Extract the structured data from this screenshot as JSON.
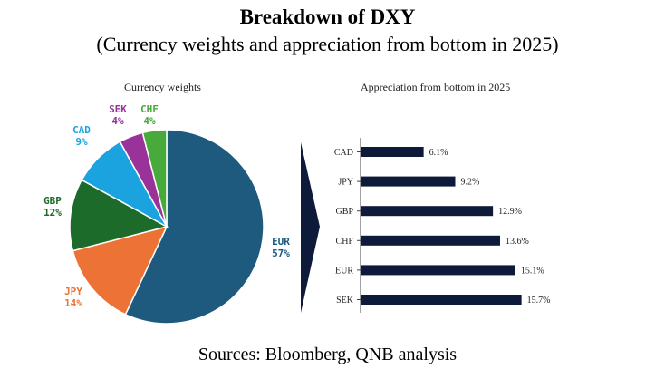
{
  "title": "Breakdown of DXY",
  "subtitle": "(Currency weights and appreciation from bottom in 2025)",
  "source": "Sources: Bloomberg, QNB analysis",
  "chart_data": [
    {
      "type": "pie",
      "title": "Currency weights",
      "unit": "%",
      "slices": [
        {
          "label": "EUR",
          "value": 57,
          "display": "57%",
          "color": "#1d5a7e"
        },
        {
          "label": "JPY",
          "value": 14,
          "display": "14%",
          "color": "#ec7236"
        },
        {
          "label": "GBP",
          "value": 12,
          "display": "12%",
          "color": "#1d6b2a"
        },
        {
          "label": "CAD",
          "value": 9,
          "display": "9%",
          "color": "#1aa3de"
        },
        {
          "label": "SEK",
          "value": 4,
          "display": "4%",
          "color": "#993399"
        },
        {
          "label": "CHF",
          "value": 4,
          "display": "4%",
          "color": "#49aa3c"
        }
      ]
    },
    {
      "type": "bar",
      "orientation": "horizontal",
      "title": "Appreciation from bottom in 2025",
      "categories": [
        "CAD",
        "JPY",
        "GBP",
        "CHF",
        "EUR",
        "SEK"
      ],
      "values": [
        6.1,
        9.2,
        12.9,
        13.6,
        15.1,
        15.7
      ],
      "labels": [
        "6.1%",
        "9.2%",
        "12.9%",
        "13.6%",
        "15.1%",
        "15.7%"
      ],
      "xlim": [
        0,
        16
      ],
      "color": "#0d1a3a"
    }
  ]
}
